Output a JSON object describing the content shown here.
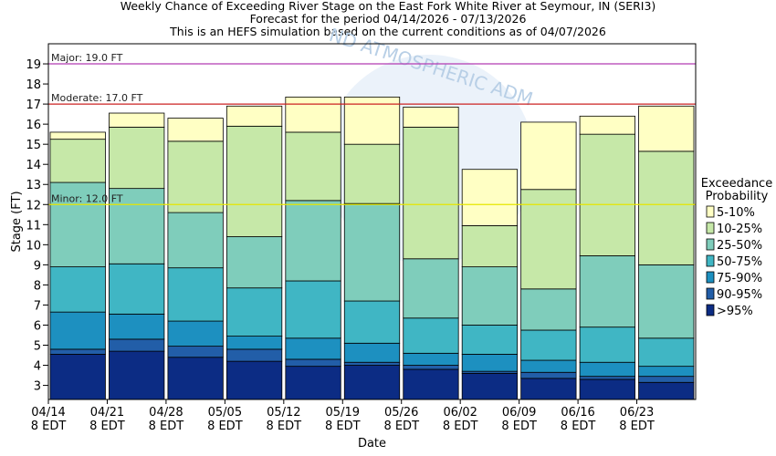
{
  "chart_data": {
    "type": "bar",
    "stacked": true,
    "title_lines": [
      "Weekly Chance of Exceeding River Stage on the East Fork White River at Seymour, IN (SERI3)",
      "Forecast for the period 04/14/2026 - 07/13/2026",
      "This is an HEFS simulation based on the current conditions as of 04/07/2026"
    ],
    "xlabel": "Date",
    "ylabel": "Stage (FT)",
    "ylim": [
      2.3,
      20
    ],
    "yticks": [
      3,
      4,
      5,
      6,
      7,
      8,
      9,
      10,
      11,
      12,
      13,
      14,
      15,
      16,
      17,
      18,
      19
    ],
    "xtick_labels": [
      {
        "date": "04/14",
        "time": "8 EDT"
      },
      {
        "date": "04/21",
        "time": "8 EDT"
      },
      {
        "date": "04/28",
        "time": "8 EDT"
      },
      {
        "date": "05/05",
        "time": "8 EDT"
      },
      {
        "date": "05/12",
        "time": "8 EDT"
      },
      {
        "date": "05/19",
        "time": "8 EDT"
      },
      {
        "date": "05/26",
        "time": "8 EDT"
      },
      {
        "date": "06/02",
        "time": "8 EDT"
      },
      {
        "date": "06/09",
        "time": "8 EDT"
      },
      {
        "date": "06/16",
        "time": "8 EDT"
      },
      {
        "date": "06/23",
        "time": "8 EDT"
      }
    ],
    "thresholds": [
      {
        "name": "Major",
        "label": "Major: 19.0 FT",
        "value": 19.0,
        "color": "#b23bb2"
      },
      {
        "name": "Moderate",
        "label": "Moderate: 17.0 FT",
        "value": 17.0,
        "color": "#cc2222"
      },
      {
        "name": "Minor",
        "label": "Minor: 12.0 FT",
        "value": 12.0,
        "color": "#e6e600"
      }
    ],
    "legend": {
      "title_lines": [
        "Exceedance",
        "Probability"
      ],
      "placement": "right",
      "items": [
        {
          "label": "5-10%",
          "color": "#ffffc4"
        },
        {
          "label": "10-25%",
          "color": "#c6e8a8"
        },
        {
          "label": "25-50%",
          "color": "#7fcdbb"
        },
        {
          "label": "50-75%",
          "color": "#40b6c4"
        },
        {
          "label": "75-90%",
          "color": "#1d90c0"
        },
        {
          "label": "90-95%",
          "color": "#225ea8"
        },
        {
          "label": ">95%",
          "color": "#0c2c84"
        }
      ]
    },
    "bars": [
      {
        "week": "04/14",
        "stages": [
          4.55,
          4.8,
          6.65,
          8.9,
          13.1,
          15.25,
          15.6
        ]
      },
      {
        "week": "04/21",
        "stages": [
          4.7,
          5.3,
          6.55,
          9.05,
          12.8,
          15.85,
          16.55
        ]
      },
      {
        "week": "04/28",
        "stages": [
          4.4,
          4.95,
          6.2,
          8.85,
          11.6,
          15.15,
          16.3
        ]
      },
      {
        "week": "05/05",
        "stages": [
          4.2,
          4.8,
          5.45,
          7.85,
          10.4,
          15.9,
          16.9
        ]
      },
      {
        "week": "05/12",
        "stages": [
          3.95,
          4.3,
          5.35,
          8.2,
          12.2,
          15.6,
          17.35
        ]
      },
      {
        "week": "05/19",
        "stages": [
          4.0,
          4.15,
          5.1,
          7.2,
          12.05,
          15.0,
          17.35
        ]
      },
      {
        "week": "05/26",
        "stages": [
          3.8,
          4.0,
          4.6,
          6.35,
          9.3,
          15.85,
          16.85
        ]
      },
      {
        "week": "06/02",
        "stages": [
          3.6,
          3.7,
          4.55,
          6.0,
          8.9,
          10.95,
          13.75
        ]
      },
      {
        "week": "06/09",
        "stages": [
          3.35,
          3.65,
          4.25,
          5.75,
          7.8,
          12.75,
          16.1
        ]
      },
      {
        "week": "06/16",
        "stages": [
          3.3,
          3.45,
          4.15,
          5.9,
          9.45,
          15.5,
          16.4
        ]
      },
      {
        "week": "06/23",
        "stages": [
          3.15,
          3.45,
          3.95,
          5.35,
          9.0,
          14.65,
          16.9
        ]
      }
    ],
    "series_note": "stages[i] = top stage of segment for each probability band, bottom (>95%) to top (5-10%)"
  },
  "watermark": "NATIONAL OCEANIC AND ATMOSPHERIC ADMINISTRATION"
}
